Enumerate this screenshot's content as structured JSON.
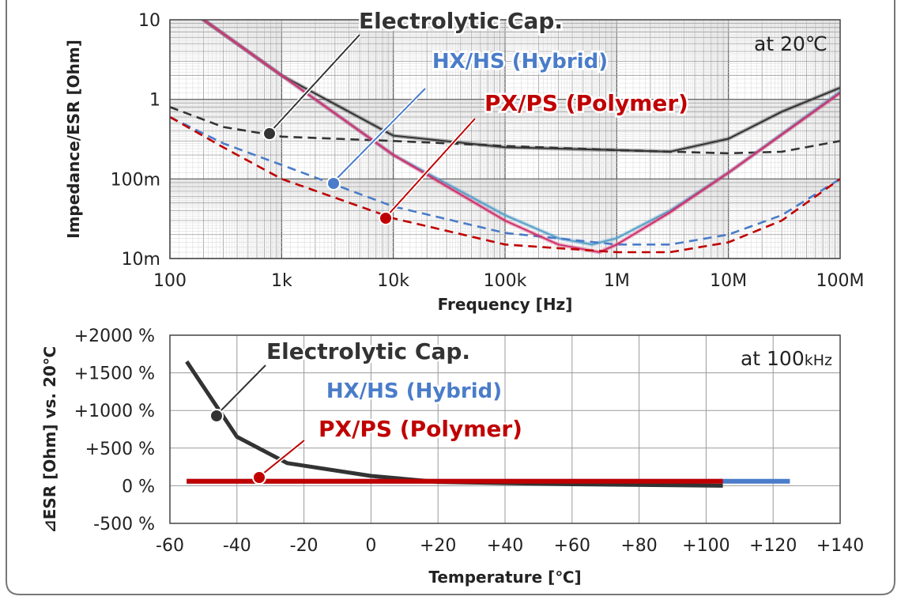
{
  "chart_data": [
    {
      "type": "line",
      "xlabel": "Frequency [Hz]",
      "ylabel": "Impedance/ESR [Ohm]",
      "xscale": "log",
      "yscale": "log",
      "xlim": [
        100,
        100000000
      ],
      "ylim": [
        0.01,
        10
      ],
      "x_tick_labels": [
        "100",
        "1k",
        "10k",
        "100k",
        "1M",
        "10M",
        "100M"
      ],
      "y_tick_labels": [
        "10m",
        "100m",
        "1",
        "10"
      ],
      "grid": true,
      "condition": "at 20℃",
      "annotations": [
        {
          "text": "Electrolytic Cap.",
          "color": "#333333"
        },
        {
          "text": "HX/HS (Hybrid)",
          "color": "#4a7cc9"
        },
        {
          "text": "PX/PS (Polymer)",
          "color": "#c00000"
        }
      ],
      "series": [
        {
          "kind": "impedance",
          "color": "#333333",
          "points": [
            [
              100,
              20
            ],
            [
              1000,
              2
            ],
            [
              10000,
              0.35
            ],
            [
              100000,
              0.25
            ],
            [
              1000000,
              0.23
            ],
            [
              3000000,
              0.22
            ],
            [
              10000000,
              0.32
            ],
            [
              30000000,
              0.7
            ],
            [
              100000000,
              1.4
            ]
          ]
        },
        {
          "kind": "esr",
          "color": "#333333",
          "points": [
            [
              100,
              0.8
            ],
            [
              300,
              0.45
            ],
            [
              1000,
              0.34
            ],
            [
              10000,
              0.3
            ],
            [
              100000,
              0.26
            ],
            [
              1000000,
              0.23
            ],
            [
              10000000,
              0.21
            ],
            [
              30000000,
              0.22
            ],
            [
              100000000,
              0.3
            ]
          ]
        },
        {
          "kind": "impedance",
          "color": "#5aa0c8",
          "points": [
            [
              100,
              20
            ],
            [
              1000,
              2
            ],
            [
              10000,
              0.2
            ],
            [
              100000,
              0.035
            ],
            [
              300000,
              0.018
            ],
            [
              600000,
              0.015
            ],
            [
              1000000,
              0.018
            ],
            [
              3000000,
              0.04
            ],
            [
              10000000,
              0.12
            ],
            [
              100000000,
              1.25
            ]
          ]
        },
        {
          "kind": "esr",
          "color": "#4a7cc9",
          "points": [
            [
              100,
              0.6
            ],
            [
              300,
              0.28
            ],
            [
              1000,
              0.15
            ],
            [
              10000,
              0.045
            ],
            [
              100000,
              0.021
            ],
            [
              1000000,
              0.015
            ],
            [
              3000000,
              0.015
            ],
            [
              10000000,
              0.02
            ],
            [
              30000000,
              0.035
            ],
            [
              100000000,
              0.1
            ]
          ]
        },
        {
          "kind": "impedance",
          "color": "#d0306a",
          "points": [
            [
              100,
              20
            ],
            [
              1000,
              2
            ],
            [
              10000,
              0.2
            ],
            [
              100000,
              0.03
            ],
            [
              300000,
              0.015
            ],
            [
              700000,
              0.012
            ],
            [
              1000000,
              0.015
            ],
            [
              3000000,
              0.038
            ],
            [
              10000000,
              0.12
            ],
            [
              100000000,
              1.2
            ]
          ]
        },
        {
          "kind": "esr",
          "color": "#c00000",
          "points": [
            [
              100,
              0.6
            ],
            [
              300,
              0.25
            ],
            [
              1000,
              0.1
            ],
            [
              10000,
              0.032
            ],
            [
              100000,
              0.015
            ],
            [
              1000000,
              0.012
            ],
            [
              3000000,
              0.012
            ],
            [
              10000000,
              0.016
            ],
            [
              30000000,
              0.03
            ],
            [
              100000000,
              0.1
            ]
          ]
        }
      ]
    },
    {
      "type": "line",
      "xlabel": "Temperature [℃]",
      "ylabel": "⊿ESR [Ohm] vs. 20℃",
      "xlim": [
        -60,
        140
      ],
      "ylim": [
        -500,
        2000
      ],
      "x_tick_labels": [
        "-60",
        "-40",
        "-20",
        "0",
        "+20",
        "+40",
        "+60",
        "+80",
        "+100",
        "+120",
        "+140"
      ],
      "y_tick_labels": [
        "-500 %",
        "0 %",
        "+500 %",
        "+1000 %",
        "+1500 %",
        "+2000 %"
      ],
      "grid": true,
      "condition": "at 100",
      "condition_unit": "kHz",
      "annotations": [
        {
          "text": "Electrolytic Cap.",
          "color": "#333333"
        },
        {
          "text": "HX/HS (Hybrid)",
          "color": "#4a7cc9"
        },
        {
          "text": "PX/PS (Polymer)",
          "color": "#c00000"
        }
      ],
      "series": [
        {
          "label": "Electrolytic Cap.",
          "color": "#333333",
          "x": [
            -55,
            -40,
            -25,
            0,
            20,
            60,
            105
          ],
          "y": [
            1650,
            650,
            300,
            130,
            50,
            20,
            0
          ]
        },
        {
          "label": "HX/HS (Hybrid)",
          "color": "#4a7cc9",
          "x": [
            -55,
            20,
            125
          ],
          "y": [
            60,
            60,
            60
          ]
        },
        {
          "label": "PX/PS (Polymer)",
          "color": "#c00000",
          "x": [
            -55,
            20,
            105
          ],
          "y": [
            60,
            60,
            60
          ]
        }
      ]
    }
  ]
}
